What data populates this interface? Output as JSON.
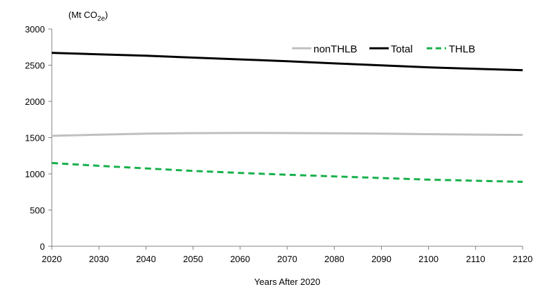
{
  "chart_data": {
    "type": "line",
    "y_unit": {
      "prefix": "(Mt CO",
      "subscript": "2e",
      "suffix": ")"
    },
    "xlabel": "Years After 2020",
    "xlim": [
      2020,
      2120
    ],
    "ylim": [
      0,
      3000
    ],
    "x_ticks": [
      "2020",
      "2030",
      "2040",
      "2050",
      "2060",
      "2070",
      "2080",
      "2090",
      "2100",
      "2110",
      "2120"
    ],
    "y_ticks": [
      "0",
      "500",
      "1000",
      "1500",
      "2000",
      "2500",
      "3000"
    ],
    "grid": false,
    "legend_position": "top-right",
    "x": [
      2020,
      2030,
      2040,
      2050,
      2060,
      2070,
      2080,
      2090,
      2100,
      2110,
      2120
    ],
    "series": [
      {
        "name": "nonTHLB",
        "color": "#bfbfbf",
        "dash": "solid",
        "values": [
          1525,
          1540,
          1555,
          1562,
          1565,
          1563,
          1560,
          1555,
          1548,
          1542,
          1537
        ]
      },
      {
        "name": "Total",
        "color": "#000000",
        "dash": "solid",
        "values": [
          2670,
          2650,
          2630,
          2605,
          2580,
          2555,
          2525,
          2498,
          2470,
          2450,
          2430
        ]
      },
      {
        "name": "THLB",
        "color": "#16b04a",
        "dash": "dashed",
        "values": [
          1150,
          1110,
          1075,
          1040,
          1012,
          988,
          965,
          942,
          920,
          905,
          890
        ]
      }
    ]
  }
}
